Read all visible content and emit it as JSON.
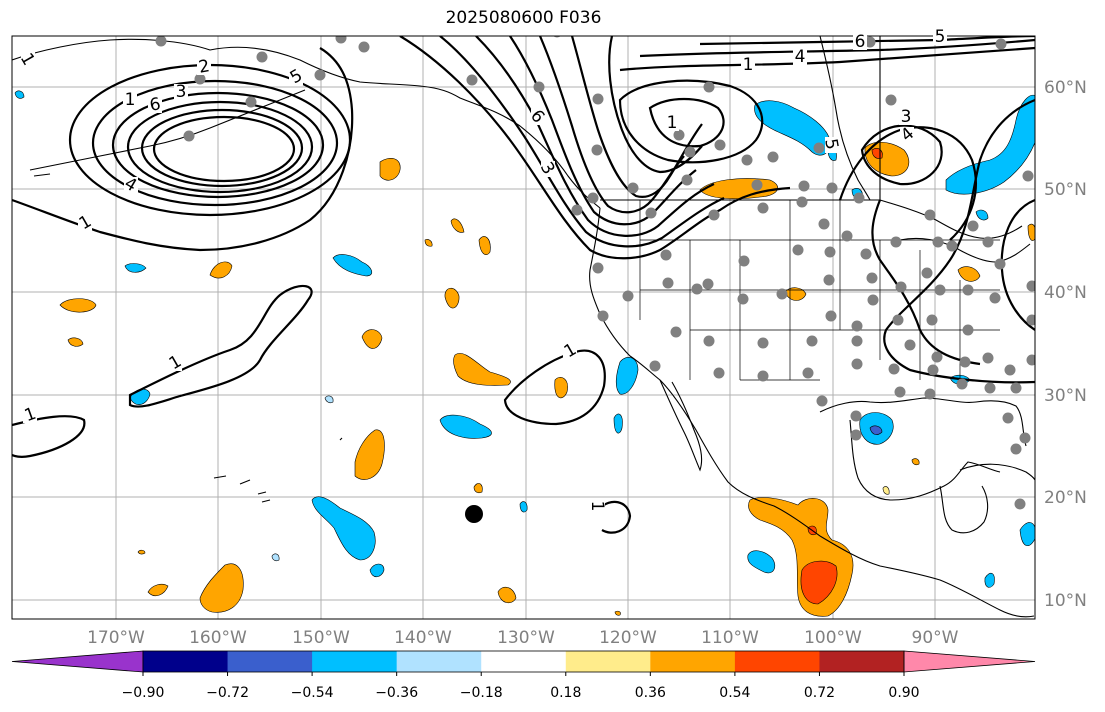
{
  "title": "2025080600 F036",
  "longitude_labels": [
    "170°W",
    "160°W",
    "150°W",
    "140°W",
    "130°W",
    "120°W",
    "110°W",
    "100°W",
    "90°W"
  ],
  "latitude_labels": [
    "60°N",
    "50°N",
    "40°N",
    "30°N",
    "20°N",
    "10°N"
  ],
  "colorbar": {
    "tick_labels": [
      "−0.90",
      "−0.72",
      "−0.54",
      "−0.36",
      "−0.18",
      "0.18",
      "0.36",
      "0.54",
      "0.72",
      "0.90"
    ],
    "colors": [
      "#9933cc",
      "#00008b",
      "#3a5fcd",
      "#00bfff",
      "#b0e2ff",
      "#ffffff",
      "#ffec8b",
      "#ffa500",
      "#ff4500",
      "#b22222",
      "#ff88aa"
    ],
    "extend": "both"
  },
  "contour_labels": [
    "1",
    "1",
    "1",
    "1",
    "1",
    "2",
    "3",
    "4",
    "5",
    "6",
    "1",
    "6",
    "1",
    "3",
    "4",
    "5",
    "6",
    "1",
    "1",
    "4",
    "3",
    "5"
  ],
  "colors": {
    "land_outline": "#000000",
    "gridline": "#b0b0b0",
    "station_dot": "#808080",
    "marker": "#000000"
  }
}
